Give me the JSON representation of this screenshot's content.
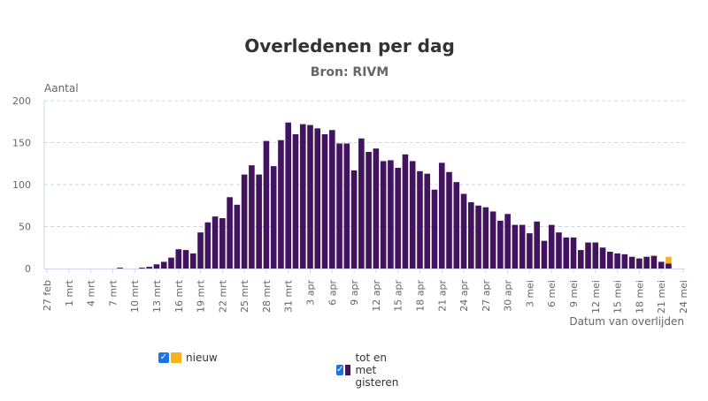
{
  "chart_data": {
    "type": "bar",
    "stacked": true,
    "title": "Overledenen per dag",
    "subtitle": "Bron: RIVM",
    "ylabel": "Aantal",
    "xlabel": "Datum van overlijden",
    "ylim": [
      0,
      200
    ],
    "yticks": [
      0,
      50,
      100,
      150,
      200
    ],
    "grid": true,
    "legend_position": "bottom",
    "xticks": [
      "27 feb",
      "1 mrt",
      "4 mrt",
      "7 mrt",
      "10 mrt",
      "13 mrt",
      "16 mrt",
      "19 mrt",
      "22 mrt",
      "25 mrt",
      "28 mrt",
      "31 mrt",
      "3 apr",
      "6 apr",
      "9 apr",
      "12 apr",
      "15 apr",
      "18 apr",
      "21 apr",
      "24 apr",
      "27 apr",
      "30 apr",
      "3 mei",
      "6 mei",
      "9 mei",
      "12 mei",
      "15 mei",
      "18 mei",
      "21 mei",
      "24 mei"
    ],
    "categories": [
      "27 feb",
      "28 feb",
      "29 feb",
      "1 mrt",
      "2 mrt",
      "3 mrt",
      "4 mrt",
      "5 mrt",
      "6 mrt",
      "7 mrt",
      "8 mrt",
      "9 mrt",
      "10 mrt",
      "11 mrt",
      "12 mrt",
      "13 mrt",
      "14 mrt",
      "15 mrt",
      "16 mrt",
      "17 mrt",
      "18 mrt",
      "19 mrt",
      "20 mrt",
      "21 mrt",
      "22 mrt",
      "23 mrt",
      "24 mrt",
      "25 mrt",
      "26 mrt",
      "27 mrt",
      "28 mrt",
      "29 mrt",
      "30 mrt",
      "31 mrt",
      "1 apr",
      "2 apr",
      "3 apr",
      "4 apr",
      "5 apr",
      "6 apr",
      "7 apr",
      "8 apr",
      "9 apr",
      "10 apr",
      "11 apr",
      "12 apr",
      "13 apr",
      "14 apr",
      "15 apr",
      "16 apr",
      "17 apr",
      "18 apr",
      "19 apr",
      "20 apr",
      "21 apr",
      "22 apr",
      "23 apr",
      "24 apr",
      "25 apr",
      "26 apr",
      "27 apr",
      "28 apr",
      "29 apr",
      "30 apr",
      "1 mei",
      "2 mei",
      "3 mei",
      "4 mei",
      "5 mei",
      "6 mei",
      "7 mei",
      "8 mei",
      "9 mei",
      "10 mei",
      "11 mei",
      "12 mei",
      "13 mei",
      "14 mei",
      "15 mei",
      "16 mei",
      "17 mei",
      "18 mei",
      "19 mei",
      "20 mei",
      "21 mei",
      "22 mei"
    ],
    "series": [
      {
        "name": "tot en met gisteren",
        "color": "#42145f",
        "values": [
          0,
          0,
          0,
          0,
          0,
          0,
          0,
          0,
          0,
          0,
          1,
          0,
          0,
          1,
          2,
          5,
          8,
          13,
          23,
          22,
          18,
          43,
          55,
          62,
          60,
          85,
          76,
          112,
          123,
          112,
          152,
          122,
          153,
          174,
          160,
          172,
          171,
          167,
          160,
          165,
          149,
          149,
          117,
          155,
          139,
          143,
          128,
          129,
          120,
          136,
          128,
          116,
          113,
          94,
          126,
          115,
          103,
          89,
          79,
          75,
          73,
          68,
          57,
          65,
          52,
          52,
          42,
          56,
          33,
          52,
          43,
          37,
          37,
          22,
          31,
          31,
          25,
          20,
          18,
          17,
          14,
          12,
          14,
          15,
          8,
          6
        ]
      },
      {
        "name": "nieuw",
        "color": "#f9b21e",
        "values": [
          0,
          0,
          0,
          0,
          0,
          0,
          0,
          0,
          0,
          0,
          0,
          0,
          0,
          0,
          0,
          0,
          0,
          0,
          0,
          0,
          0,
          0,
          0,
          0,
          0,
          0,
          0,
          0,
          0,
          0,
          0,
          0,
          0,
          0,
          0,
          0,
          0,
          0,
          0,
          0,
          0,
          0,
          0,
          0,
          0,
          0,
          0,
          0,
          0,
          0,
          0,
          0,
          0,
          0,
          0,
          0,
          0,
          0,
          0,
          0,
          0,
          0,
          0,
          0,
          0,
          0,
          0,
          0,
          0,
          0,
          0,
          0,
          0,
          0,
          0,
          0,
          0,
          0,
          0,
          0,
          0,
          0,
          0,
          1,
          0,
          8
        ]
      }
    ]
  },
  "legend": {
    "items": [
      {
        "label": "nieuw",
        "color": "#f9b21e",
        "checked": true
      },
      {
        "label": "tot en met gisteren",
        "color": "#42145f",
        "checked": true
      }
    ]
  }
}
